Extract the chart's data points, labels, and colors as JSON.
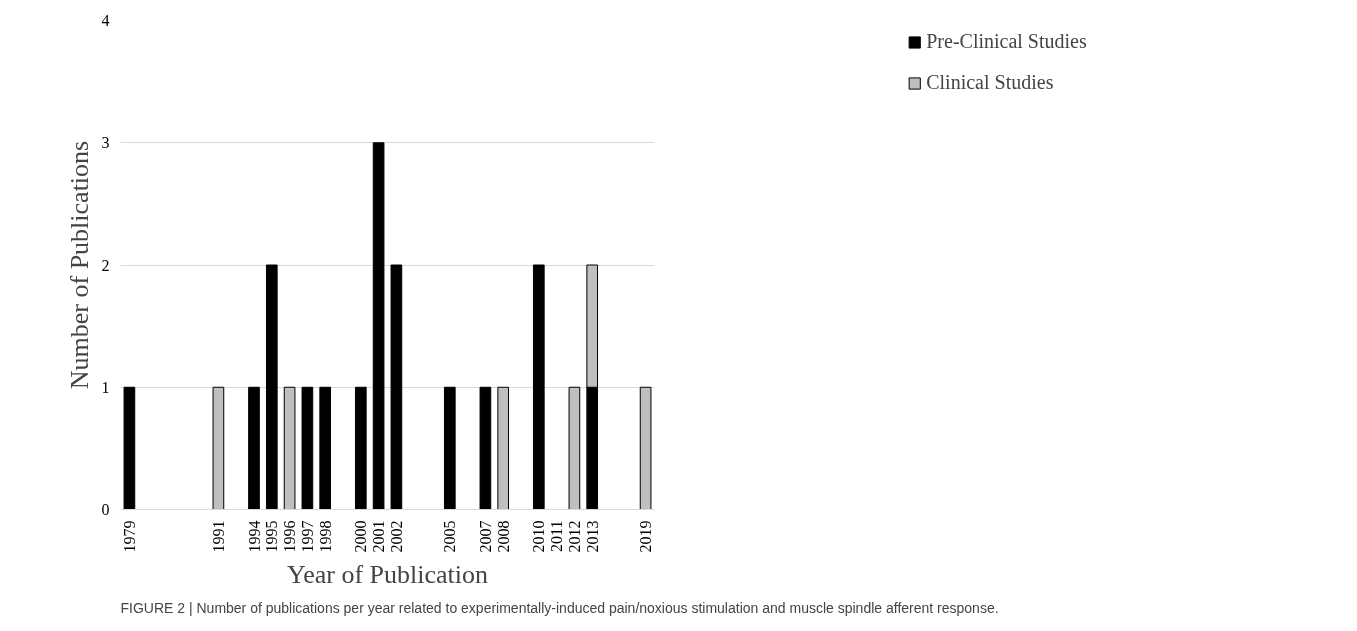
{
  "chart_data": {
    "type": "bar",
    "stacked": true,
    "xlabel": "Year of Publication",
    "ylabel": "Number of Publications",
    "categories": [
      "1979",
      null,
      null,
      null,
      null,
      "1991",
      null,
      "1994",
      "1995",
      "1996",
      "1997",
      "1998",
      null,
      "2000",
      "2001",
      "2002",
      null,
      null,
      "2005",
      null,
      "2007",
      "2008",
      null,
      "2010",
      "2011",
      "2012",
      "2013",
      null,
      null,
      "2019"
    ],
    "series": [
      {
        "name": "Pre-Clinical Studies",
        "color": "#000000",
        "values": [
          1,
          null,
          null,
          null,
          null,
          null,
          null,
          1,
          2,
          null,
          1,
          1,
          null,
          1,
          3,
          2,
          null,
          null,
          1,
          null,
          1,
          null,
          null,
          2,
          null,
          null,
          1,
          null,
          null,
          null
        ]
      },
      {
        "name": "Clinical Studies",
        "color": "#bfbfbf",
        "values": [
          null,
          null,
          null,
          null,
          null,
          1,
          null,
          null,
          null,
          1,
          null,
          null,
          null,
          null,
          null,
          null,
          null,
          null,
          null,
          null,
          null,
          1,
          null,
          null,
          null,
          1,
          1,
          null,
          null,
          1
        ]
      }
    ],
    "ylim": [
      0,
      4
    ],
    "yticks": [
      0,
      1,
      2,
      3,
      4
    ],
    "grid": "y",
    "legend": "right",
    "annotations": [
      "FIGURE 2 | Number of publications per year related to experimentally-induced pain/noxious stimulation and muscle spindle afferent response."
    ]
  }
}
